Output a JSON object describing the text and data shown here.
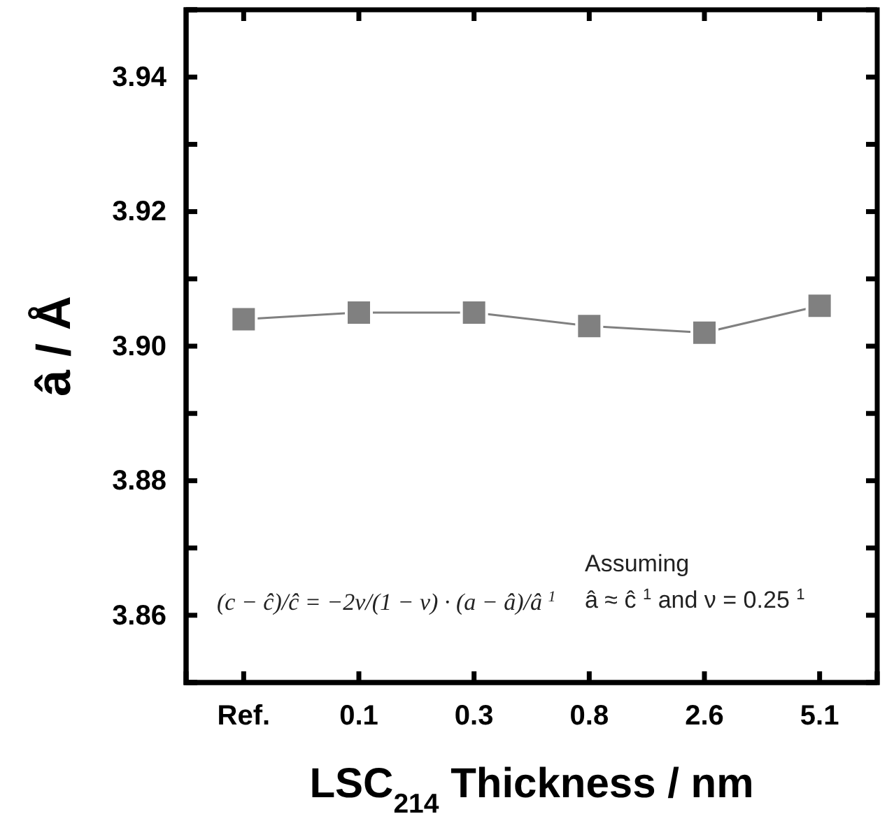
{
  "chart_data": {
    "type": "line",
    "xlabel": "LSC$_{214}$ Thickness / nm",
    "ylabel": "â / Å",
    "categories": [
      "Ref.",
      "0.1",
      "0.3",
      "0.8",
      "2.6",
      "5.1"
    ],
    "series": [
      {
        "color": "#808080",
        "values": [
          3.904,
          3.905,
          3.905,
          3.903,
          3.902,
          3.906
        ]
      }
    ],
    "marker": "square",
    "line_style": "solid",
    "grid": false,
    "ylim": [
      3.85,
      3.95
    ],
    "yticks": [
      {
        "value": 3.85,
        "label": null
      },
      3.86,
      {
        "value": 3.87,
        "label": null
      },
      3.88,
      {
        "value": 3.89,
        "label": null
      },
      {
        "value": 3.9,
        "label": "3.90"
      },
      {
        "value": 3.91,
        "label": null
      },
      3.92,
      {
        "value": 3.93,
        "label": null
      },
      3.94,
      {
        "value": 3.95,
        "label": null
      }
    ],
    "annotations": [
      "(c − ĉ)/ĉ = −2ν/(1 − ν) · (a − â)/â $^{1}$",
      "Assuming â ≈ ĉ $^{1}$ and ν = 0.25 $^{1}$"
    ]
  }
}
